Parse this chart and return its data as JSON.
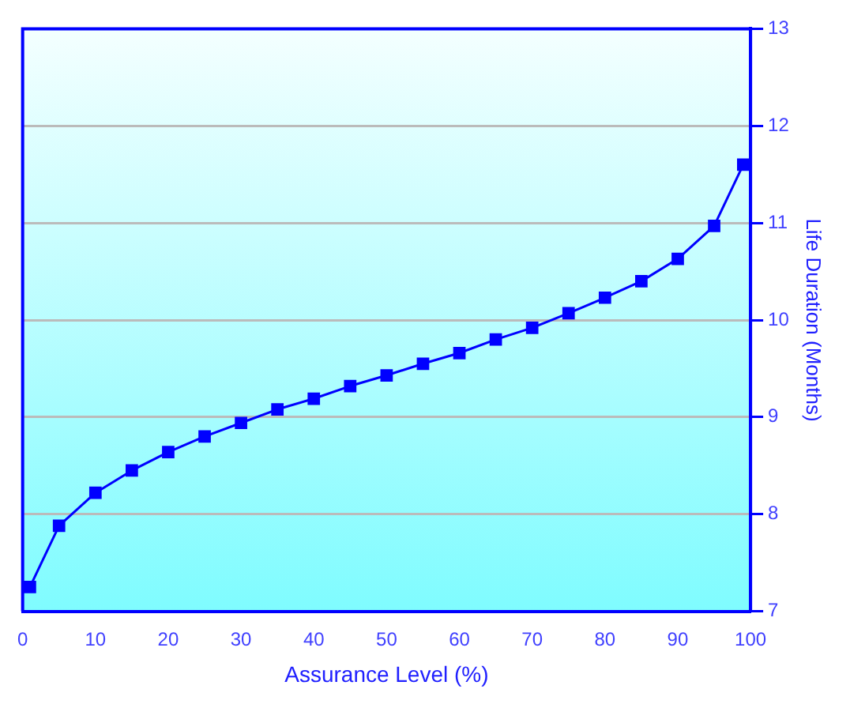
{
  "chart_data": {
    "type": "line",
    "xlabel": "Assurance Level (%)",
    "y2label": "Life Duration (Months)",
    "x": [
      1,
      5,
      10,
      15,
      20,
      25,
      30,
      35,
      40,
      45,
      50,
      55,
      60,
      65,
      70,
      75,
      80,
      85,
      90,
      95,
      99
    ],
    "series": [
      {
        "color": "#0000ff",
        "axis": "y2",
        "values": [
          7.25,
          7.88,
          8.22,
          8.45,
          8.64,
          8.8,
          8.94,
          9.08,
          9.19,
          9.32,
          9.43,
          9.55,
          9.66,
          9.8,
          9.92,
          10.07,
          10.23,
          10.4,
          10.63,
          10.97,
          11.6
        ]
      }
    ],
    "xlim": [
      0,
      100
    ],
    "xticks": [
      0,
      10,
      20,
      30,
      40,
      50,
      60,
      70,
      80,
      90,
      100
    ],
    "y2lim": [
      7,
      13
    ],
    "y2ticks": [
      7,
      8,
      9,
      10,
      11,
      12,
      13
    ],
    "grid": "y",
    "legend": false,
    "marker": "square",
    "line_style": "solid"
  }
}
